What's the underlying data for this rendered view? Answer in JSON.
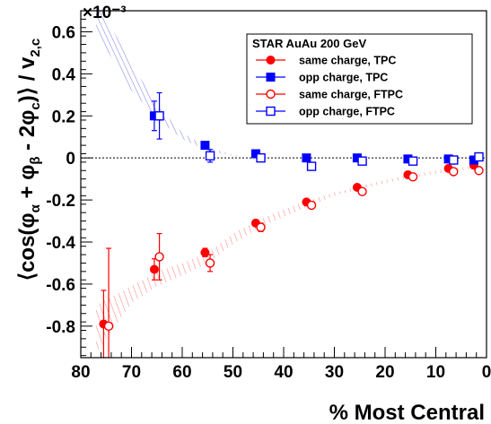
{
  "chart_data": {
    "type": "scatter",
    "title": "",
    "xlabel": "% Most Central",
    "ylabel": "⟨cos(φα + φβ - 2φc)⟩ / v2,c",
    "y_multiplier": "×10⁻³",
    "xlim": [
      80,
      0
    ],
    "ylim": [
      -0.95,
      0.7
    ],
    "x_ticks": [
      80,
      70,
      60,
      50,
      40,
      30,
      20,
      10,
      0
    ],
    "y_ticks": [
      -0.8,
      -0.6,
      -0.4,
      -0.2,
      0,
      0.2,
      0.4,
      0.6
    ],
    "legend": {
      "title": "STAR  AuAu 200 GeV",
      "position": "top-right"
    },
    "series": [
      {
        "name": "same charge, TPC",
        "color": "#ff0000",
        "marker": "filled-circle",
        "points": [
          {
            "x": 75.5,
            "y": -0.79,
            "err": 0.16
          },
          {
            "x": 65.5,
            "y": -0.53,
            "err": 0.05
          },
          {
            "x": 55.5,
            "y": -0.45,
            "err": 0.02
          },
          {
            "x": 45.5,
            "y": -0.31,
            "err": 0.015
          },
          {
            "x": 35.5,
            "y": -0.21,
            "err": 0.01
          },
          {
            "x": 25.5,
            "y": -0.14,
            "err": 0.01
          },
          {
            "x": 15.5,
            "y": -0.08,
            "err": 0.01
          },
          {
            "x": 7.5,
            "y": -0.05,
            "err": 0.01
          },
          {
            "x": 2.5,
            "y": -0.035,
            "err": 0.01
          }
        ]
      },
      {
        "name": "opp charge, TPC",
        "color": "#0000ff",
        "marker": "filled-square",
        "points": [
          {
            "x": 65.5,
            "y": 0.2,
            "err": 0.07
          },
          {
            "x": 55.5,
            "y": 0.06,
            "err": 0.015
          },
          {
            "x": 45.5,
            "y": 0.02,
            "err": 0.01
          },
          {
            "x": 35.5,
            "y": 0.0,
            "err": 0.01
          },
          {
            "x": 25.5,
            "y": 0.0,
            "err": 0.01
          },
          {
            "x": 15.5,
            "y": -0.005,
            "err": 0.01
          },
          {
            "x": 7.5,
            "y": -0.005,
            "err": 0.01
          },
          {
            "x": 2.5,
            "y": -0.01,
            "err": 0.01
          }
        ]
      },
      {
        "name": "same charge, FTPC",
        "color": "#ff0000",
        "marker": "open-circle",
        "points": [
          {
            "x": 74.5,
            "y": -0.8,
            "err": 0.37
          },
          {
            "x": 64.5,
            "y": -0.47,
            "err": 0.11
          },
          {
            "x": 54.5,
            "y": -0.5,
            "err": 0.04
          },
          {
            "x": 44.5,
            "y": -0.33,
            "err": 0.02
          },
          {
            "x": 34.5,
            "y": -0.225,
            "err": 0.015
          },
          {
            "x": 24.5,
            "y": -0.16,
            "err": 0.01
          },
          {
            "x": 14.5,
            "y": -0.09,
            "err": 0.01
          },
          {
            "x": 6.5,
            "y": -0.065,
            "err": 0.01
          },
          {
            "x": 1.5,
            "y": -0.06,
            "err": 0.01
          }
        ]
      },
      {
        "name": "opp charge, FTPC",
        "color": "#0000ff",
        "marker": "open-square",
        "points": [
          {
            "x": 64.5,
            "y": 0.2,
            "err": 0.11
          },
          {
            "x": 54.5,
            "y": 0.01,
            "err": 0.03
          },
          {
            "x": 44.5,
            "y": 0.0,
            "err": 0.01
          },
          {
            "x": 34.5,
            "y": -0.04,
            "err": 0.01
          },
          {
            "x": 24.5,
            "y": -0.015,
            "err": 0.01
          },
          {
            "x": 14.5,
            "y": -0.015,
            "err": 0.01
          },
          {
            "x": 6.5,
            "y": -0.01,
            "err": 0.01
          },
          {
            "x": 1.5,
            "y": 0.005,
            "err": 0.01
          }
        ]
      }
    ],
    "bands": [
      {
        "color": "#3333cc",
        "x": [
          77,
          70,
          65,
          60,
          55,
          50,
          47
        ],
        "lower": [
          0.6,
          0.32,
          0.19,
          0.09,
          0.035,
          0.01,
          0.0
        ],
        "upper": [
          0.75,
          0.45,
          0.25,
          0.12,
          0.05,
          0.015,
          0.0
        ]
      },
      {
        "color": "#ff4444",
        "x": [
          77,
          70,
          65,
          60,
          55,
          50,
          45,
          40,
          35,
          30,
          25,
          20,
          15,
          10,
          5,
          2
        ],
        "lower": [
          -0.93,
          -0.69,
          -0.61,
          -0.56,
          -0.5,
          -0.41,
          -0.335,
          -0.28,
          -0.23,
          -0.18,
          -0.15,
          -0.12,
          -0.095,
          -0.075,
          -0.06,
          -0.05
        ],
        "upper": [
          -0.7,
          -0.61,
          -0.54,
          -0.5,
          -0.45,
          -0.36,
          -0.295,
          -0.245,
          -0.2,
          -0.165,
          -0.135,
          -0.105,
          -0.08,
          -0.06,
          -0.045,
          -0.035
        ]
      }
    ]
  }
}
